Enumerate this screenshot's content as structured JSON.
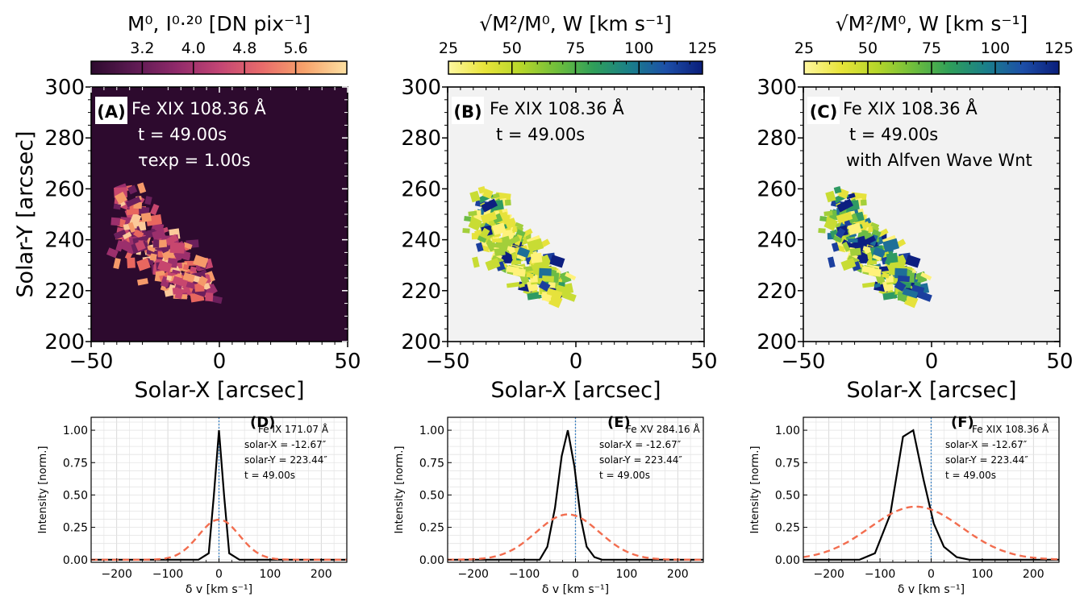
{
  "colors": {
    "panel_a_bg": "#2d0a2e",
    "panel_bg": "#f2f2f2",
    "magma_stops": [
      "#2d0a2e",
      "#5c1a52",
      "#8f2a6a",
      "#c24574",
      "#e86b6b",
      "#f7a26b",
      "#fde0a2"
    ],
    "viridis_stops": [
      "#fff7a0",
      "#e8e43a",
      "#b6d62a",
      "#6fbe3c",
      "#2f9f5a",
      "#1a7f8a",
      "#1d4fa8",
      "#0a1d7a"
    ],
    "gauss": "#f26d4f",
    "profile": "#000000",
    "zero_line": "#3b82c4"
  },
  "colorbars": [
    {
      "label_main": "M⁰, I⁰·²⁰ [DN pix⁻¹]",
      "ticks": [
        "3.2",
        "4.0",
        "4.8",
        "5.6"
      ]
    },
    {
      "label_main": "√M²/M⁰, W [km s⁻¹]",
      "ticks": [
        "25",
        "50",
        "75",
        "100",
        "125"
      ]
    },
    {
      "label_main": "√M²/M⁰, W [km s⁻¹]",
      "ticks": [
        "25",
        "50",
        "75",
        "100",
        "125"
      ]
    }
  ],
  "chart_data": [
    {
      "type": "heatmap",
      "panel_label": "(A)",
      "annotation_lines": [
        "Fe XIX 108.36 Å",
        "t = 49.00s",
        "τexp = 1.00s"
      ],
      "xlabel": "Solar-X [arcsec]",
      "ylabel": "Solar-Y [arcsec]",
      "xlim": [
        -50,
        50
      ],
      "ylim": [
        200,
        300
      ],
      "xticks": [
        "−50",
        "0",
        "50"
      ],
      "yticks": [
        "200",
        "220",
        "240",
        "260",
        "280",
        "300"
      ],
      "colormap": "magma"
    },
    {
      "type": "heatmap",
      "panel_label": "(B)",
      "annotation_lines": [
        "Fe XIX 108.36 Å",
        "t = 49.00s"
      ],
      "xlabel": "Solar-X [arcsec]",
      "xlim": [
        -50,
        50
      ],
      "ylim": [
        200,
        300
      ],
      "xticks": [
        "−50",
        "0",
        "50"
      ],
      "yticks": [
        "200",
        "220",
        "240",
        "260",
        "280",
        "300"
      ],
      "colormap": "viridis_r"
    },
    {
      "type": "heatmap",
      "panel_label": "(C)",
      "annotation_lines": [
        "Fe XIX 108.36 Å",
        "t = 49.00s",
        "with Alfven Wave Wnt"
      ],
      "xlabel": "Solar-X [arcsec]",
      "xlim": [
        -50,
        50
      ],
      "ylim": [
        200,
        300
      ],
      "xticks": [
        "−50",
        "0",
        "50"
      ],
      "yticks": [
        "200",
        "220",
        "240",
        "260",
        "280",
        "300"
      ],
      "colormap": "viridis_r"
    },
    {
      "type": "line",
      "panel_label": "(D)",
      "annotation_lines": [
        "Fe IX 171.07 Å",
        "solar-X = -12.67″",
        "solar-Y = 223.44″",
        "t = 49.00s"
      ],
      "xlabel": "δ v [km s⁻¹]",
      "ylabel": "Intensity [norm.]",
      "xlim": [
        -250,
        250
      ],
      "ylim": [
        -0.02,
        1.1
      ],
      "xticks": [
        -200,
        -100,
        0,
        100,
        200
      ],
      "yticks": [
        "0.00",
        "0.25",
        "0.50",
        "0.75",
        "1.00"
      ],
      "series": [
        {
          "style": "solid",
          "x": [
            -250,
            -40,
            -20,
            -10,
            0,
            10,
            20,
            40,
            250
          ],
          "y": [
            0,
            0,
            0.05,
            0.5,
            1.0,
            0.5,
            0.05,
            0,
            0
          ]
        },
        {
          "style": "dashed",
          "gauss": {
            "amp": 0.31,
            "center": 0,
            "sigma": 40
          }
        }
      ]
    },
    {
      "type": "line",
      "panel_label": "(E)",
      "annotation_lines": [
        "Fe XV 284.16 Å",
        "solar-X = -12.67″",
        "solar-Y = 223.44″",
        "t = 49.00s"
      ],
      "xlabel": "δ v [km s⁻¹]",
      "ylabel": "Intensity [norm.]",
      "xlim": [
        -250,
        250
      ],
      "ylim": [
        -0.02,
        1.1
      ],
      "xticks": [
        -200,
        -100,
        0,
        100,
        200
      ],
      "yticks": [
        "0.00",
        "0.25",
        "0.50",
        "0.75",
        "1.00"
      ],
      "series": [
        {
          "style": "solid",
          "x": [
            -250,
            -70,
            -55,
            -40,
            -27,
            -15,
            -2,
            10,
            22,
            37,
            52,
            250
          ],
          "y": [
            0,
            0,
            0.1,
            0.4,
            0.8,
            1.0,
            0.72,
            0.33,
            0.1,
            0.02,
            0,
            0
          ]
        },
        {
          "style": "dashed",
          "gauss": {
            "amp": 0.35,
            "center": -15,
            "sigma": 62
          }
        }
      ]
    },
    {
      "type": "line",
      "panel_label": "(F)",
      "annotation_lines": [
        "Fe XIX 108.36 Å",
        "solar-X = -12.67″",
        "solar-Y = 223.44″",
        "t = 49.00s"
      ],
      "xlabel": "δ v [km s⁻¹]",
      "ylabel": "Intensity [norm.]",
      "xlim": [
        -250,
        250
      ],
      "ylim": [
        -0.02,
        1.1
      ],
      "xticks": [
        -200,
        -100,
        0,
        100,
        200
      ],
      "yticks": [
        "0.00",
        "0.25",
        "0.50",
        "0.75",
        "1.00"
      ],
      "series": [
        {
          "style": "solid",
          "x": [
            -250,
            -140,
            -110,
            -80,
            -55,
            -35,
            -15,
            5,
            25,
            50,
            75,
            250
          ],
          "y": [
            0,
            0,
            0.05,
            0.35,
            0.95,
            1.0,
            0.62,
            0.28,
            0.1,
            0.02,
            0,
            0
          ]
        },
        {
          "style": "dashed",
          "gauss": {
            "amp": 0.41,
            "center": -30,
            "sigma": 90
          }
        }
      ]
    }
  ]
}
